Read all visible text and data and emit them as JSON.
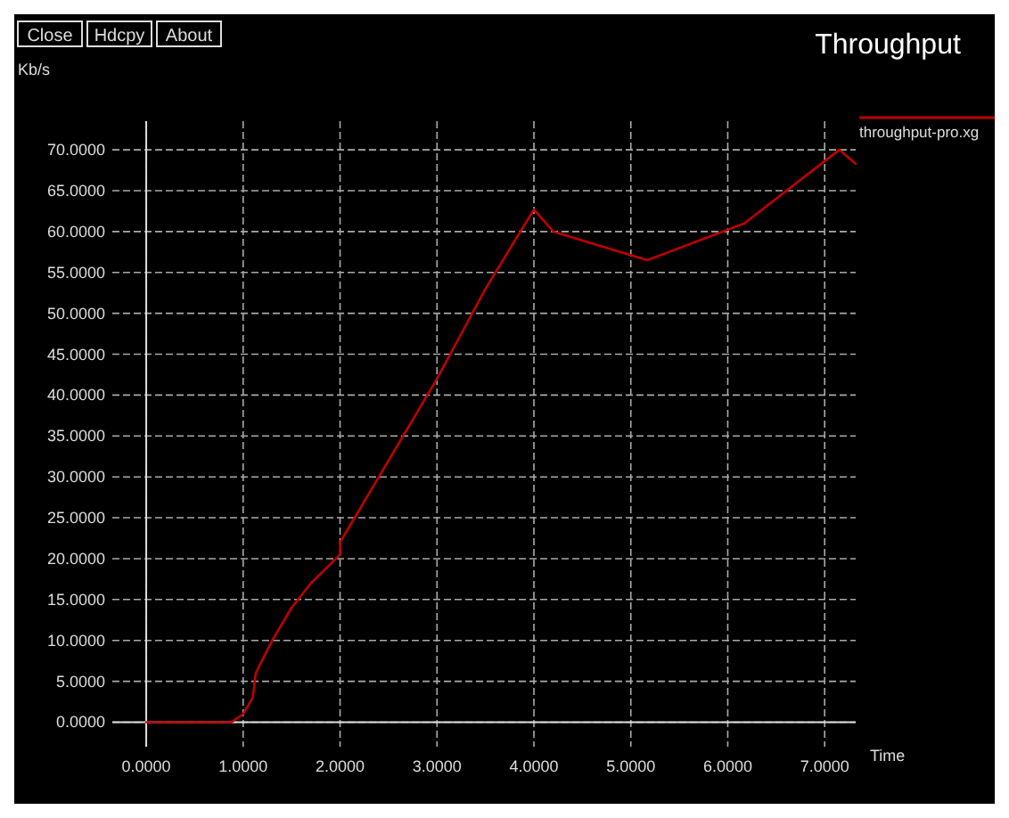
{
  "chart_data": {
    "type": "line",
    "title": "Throughput",
    "ylabel": "Kb/s",
    "xlabel": "Time",
    "annotations": [
      "Close",
      "Hdcpy",
      "About"
    ],
    "x": [
      0,
      0.88,
      1.0,
      1.1,
      1.13,
      1.3,
      1.5,
      1.7,
      2.0,
      2.0,
      2.1,
      2.5,
      3.0,
      3.5,
      4.0,
      4.2,
      5.17,
      6.17,
      7.15,
      7.32
    ],
    "series": [
      {
        "name": "throughput-pro.xg",
        "color": "#c00000",
        "values": [
          0,
          0,
          1,
          3,
          6,
          10,
          14,
          17,
          20.5,
          22,
          24,
          32,
          42,
          53,
          62.7,
          60,
          56.5,
          61,
          70,
          68.3
        ]
      }
    ],
    "xlim": [
      -0.35,
      7.32
    ],
    "ylim": [
      -3,
      73.5
    ],
    "xticks": [
      {
        "value": 0,
        "label": "0.0000"
      },
      {
        "value": 1,
        "label": "1.0000"
      },
      {
        "value": 2,
        "label": "2.0000"
      },
      {
        "value": 3,
        "label": "3.0000"
      },
      {
        "value": 4,
        "label": "4.0000"
      },
      {
        "value": 5,
        "label": "5.0000"
      },
      {
        "value": 6,
        "label": "6.0000"
      },
      {
        "value": 7,
        "label": "7.0000"
      }
    ],
    "yticks": [
      {
        "value": 0,
        "label": "0.0000"
      },
      {
        "value": 5,
        "label": "5.0000"
      },
      {
        "value": 10,
        "label": "10.0000"
      },
      {
        "value": 15,
        "label": "15.0000"
      },
      {
        "value": 20,
        "label": "20.0000"
      },
      {
        "value": 25,
        "label": "25.0000"
      },
      {
        "value": 30,
        "label": "30.0000"
      },
      {
        "value": 35,
        "label": "35.0000"
      },
      {
        "value": 40,
        "label": "40.0000"
      },
      {
        "value": 45,
        "label": "45.0000"
      },
      {
        "value": 50,
        "label": "50.0000"
      },
      {
        "value": 55,
        "label": "55.0000"
      },
      {
        "value": 60,
        "label": "60.0000"
      },
      {
        "value": 65,
        "label": "65.0000"
      },
      {
        "value": 70,
        "label": "70.0000"
      }
    ],
    "grid": true,
    "legend": "top right",
    "marker": "none",
    "line_style": "solid"
  }
}
